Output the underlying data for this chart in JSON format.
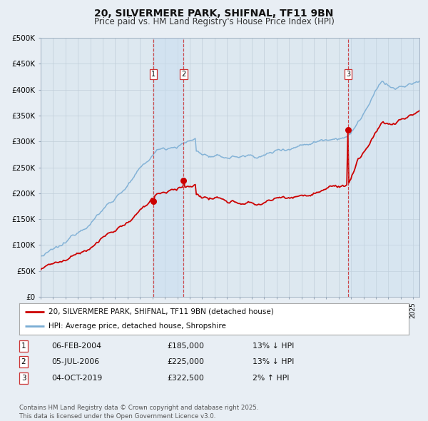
{
  "title": "20, SILVERMERE PARK, SHIFNAL, TF11 9BN",
  "subtitle": "Price paid vs. HM Land Registry's House Price Index (HPI)",
  "ylim": [
    0,
    500000
  ],
  "yticks": [
    0,
    50000,
    100000,
    150000,
    200000,
    250000,
    300000,
    350000,
    400000,
    450000,
    500000
  ],
  "ytick_labels": [
    "£0",
    "£50K",
    "£100K",
    "£150K",
    "£200K",
    "£250K",
    "£300K",
    "£350K",
    "£400K",
    "£450K",
    "£500K"
  ],
  "xlim_start": 1995.0,
  "xlim_end": 2025.5,
  "line1_color": "#cc0000",
  "line2_color": "#7aadd4",
  "background_color": "#e8eef4",
  "plot_bg_color": "#dde8f0",
  "grid_color": "#c0cdd8",
  "sale_dates": [
    2004.09,
    2006.51,
    2019.75
  ],
  "sale_prices": [
    185000,
    225000,
    322500
  ],
  "sale_labels": [
    "1",
    "2",
    "3"
  ],
  "vline_color": "#cc3333",
  "legend_line1": "20, SILVERMERE PARK, SHIFNAL, TF11 9BN (detached house)",
  "legend_line2": "HPI: Average price, detached house, Shropshire",
  "table_rows": [
    [
      "1",
      "06-FEB-2004",
      "£185,000",
      "13% ↓ HPI"
    ],
    [
      "2",
      "05-JUL-2006",
      "£225,000",
      "13% ↓ HPI"
    ],
    [
      "3",
      "04-OCT-2019",
      "£322,500",
      "2% ↑ HPI"
    ]
  ],
  "footnote": "Contains HM Land Registry data © Crown copyright and database right 2025.\nThis data is licensed under the Open Government Licence v3.0.",
  "title_fontsize": 10,
  "subtitle_fontsize": 8.5,
  "span_color": "#c8ddf0",
  "span_alpha": 0.5
}
